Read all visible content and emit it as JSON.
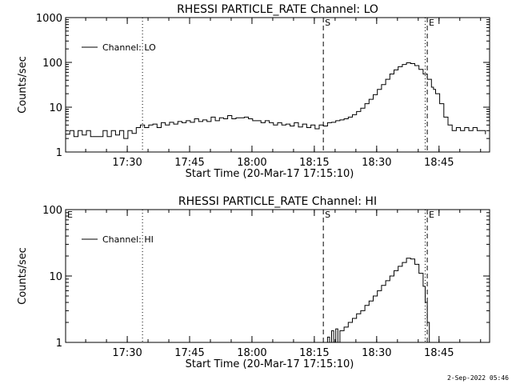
{
  "chart_data": [
    {
      "type": "line",
      "title": "RHESSI PARTICLE_RATE Channel: LO",
      "xlabel": "Start Time (20-Mar-17 17:15:10)",
      "ylabel": "Counts/sec",
      "y_scale": "log",
      "ylim": [
        1,
        1000
      ],
      "y_ticks": [
        "1",
        "10",
        "100",
        "1000"
      ],
      "xlim_minutes_after_17_15_10": [
        0,
        102
      ],
      "x_ticks": [
        "17:30",
        "17:45",
        "18:00",
        "18:15",
        "18:30",
        "18:45"
      ],
      "legend": "top-left",
      "series": [
        {
          "name": "Channel: LO",
          "points": [
            [
              0,
              2.5
            ],
            [
              1,
              3
            ],
            [
              2,
              2.2
            ],
            [
              3,
              3
            ],
            [
              4,
              2.4
            ],
            [
              5,
              3
            ],
            [
              6,
              2.2
            ],
            [
              7,
              2.2
            ],
            [
              8,
              2.2
            ],
            [
              9,
              3
            ],
            [
              10,
              2.2
            ],
            [
              11,
              3
            ],
            [
              12,
              2.4
            ],
            [
              13,
              3
            ],
            [
              14,
              2
            ],
            [
              15,
              3
            ],
            [
              16,
              2.6
            ],
            [
              17,
              3.5
            ],
            [
              18,
              4
            ],
            [
              19,
              3.5
            ],
            [
              20,
              4
            ],
            [
              21,
              4.2
            ],
            [
              22,
              3.5
            ],
            [
              23,
              4.5
            ],
            [
              24,
              4
            ],
            [
              25,
              4.6
            ],
            [
              26,
              4.2
            ],
            [
              27,
              4.8
            ],
            [
              28,
              4.5
            ],
            [
              29,
              5
            ],
            [
              30,
              4.6
            ],
            [
              31,
              5.5
            ],
            [
              32,
              4.8
            ],
            [
              33,
              5.2
            ],
            [
              34,
              4.8
            ],
            [
              35,
              6
            ],
            [
              36,
              5
            ],
            [
              37,
              5.8
            ],
            [
              38,
              5.5
            ],
            [
              39,
              6.5
            ],
            [
              40,
              5.5
            ],
            [
              41,
              5.8
            ],
            [
              42,
              5.8
            ],
            [
              43,
              6
            ],
            [
              44,
              5.5
            ],
            [
              45,
              5
            ],
            [
              46,
              5
            ],
            [
              47,
              4.5
            ],
            [
              48,
              5
            ],
            [
              49,
              4.5
            ],
            [
              50,
              4
            ],
            [
              51,
              4.5
            ],
            [
              52,
              4
            ],
            [
              53,
              4.2
            ],
            [
              54,
              3.8
            ],
            [
              55,
              4.5
            ],
            [
              56,
              3.6
            ],
            [
              57,
              4.2
            ],
            [
              58,
              3.5
            ],
            [
              59,
              4
            ],
            [
              60,
              3.3
            ],
            [
              61,
              4
            ],
            [
              62,
              3.8
            ],
            [
              63,
              4.5
            ],
            [
              64,
              4.6
            ],
            [
              65,
              5
            ],
            [
              66,
              5.2
            ],
            [
              67,
              5.5
            ],
            [
              68,
              6
            ],
            [
              69,
              6.8
            ],
            [
              70,
              8
            ],
            [
              71,
              9.5
            ],
            [
              72,
              12
            ],
            [
              73,
              15
            ],
            [
              74,
              19
            ],
            [
              75,
              25
            ],
            [
              76,
              32
            ],
            [
              77,
              42
            ],
            [
              78,
              55
            ],
            [
              79,
              68
            ],
            [
              80,
              80
            ],
            [
              81,
              90
            ],
            [
              82,
              98
            ],
            [
              83,
              94
            ],
            [
              84,
              85
            ],
            [
              85,
              70
            ],
            [
              86,
              55
            ],
            [
              87,
              42
            ],
            [
              88,
              28
            ],
            [
              88.5,
              25
            ],
            [
              89,
              20
            ],
            [
              90,
              12
            ],
            [
              91,
              6
            ],
            [
              92,
              4
            ],
            [
              93,
              3
            ],
            [
              94,
              3.5
            ],
            [
              95,
              3
            ],
            [
              96,
              3.5
            ],
            [
              97,
              3
            ],
            [
              98,
              3.5
            ],
            [
              99,
              3
            ],
            [
              100,
              3
            ],
            [
              101,
              2.5
            ]
          ]
        }
      ],
      "markers": [
        {
          "label": "S",
          "style": "dashed",
          "minute": 62
        },
        {
          "label": "E",
          "style": "dashed",
          "minute": 87
        }
      ],
      "dotted_lines_minutes": [
        18.5,
        86.5,
        102
      ]
    },
    {
      "type": "line",
      "title": "RHESSI PARTICLE_RATE Channel: HI",
      "xlabel": "Start Time (20-Mar-17 17:15:10)",
      "ylabel": "Counts/sec",
      "y_scale": "log",
      "ylim": [
        1,
        100
      ],
      "y_ticks": [
        "1",
        "10",
        "100"
      ],
      "xlim_minutes_after_17_15_10": [
        0,
        102
      ],
      "x_ticks": [
        "17:30",
        "17:45",
        "18:00",
        "18:15",
        "18:30",
        "18:45"
      ],
      "legend": "top-left",
      "series": [
        {
          "name": "Channel: HI",
          "points": [
            [
              62.5,
              1
            ],
            [
              63,
              1.2
            ],
            [
              63.5,
              1
            ],
            [
              64,
              1.5
            ],
            [
              64.5,
              1
            ],
            [
              65,
              1.6
            ],
            [
              65.5,
              1
            ],
            [
              66,
              1.5
            ],
            [
              67,
              1.7
            ],
            [
              68,
              2
            ],
            [
              69,
              2.3
            ],
            [
              70,
              2.7
            ],
            [
              71,
              3
            ],
            [
              72,
              3.6
            ],
            [
              73,
              4.2
            ],
            [
              74,
              5
            ],
            [
              75,
              6
            ],
            [
              76,
              7.2
            ],
            [
              77,
              8.5
            ],
            [
              78,
              10
            ],
            [
              79,
              12
            ],
            [
              80,
              14
            ],
            [
              81,
              16
            ],
            [
              82,
              18.5
            ],
            [
              83,
              18
            ],
            [
              84,
              15
            ],
            [
              85,
              11
            ],
            [
              86,
              7
            ],
            [
              86.5,
              4
            ],
            [
              87,
              2
            ],
            [
              87.5,
              1
            ]
          ]
        }
      ],
      "markers": [
        {
          "label": "S",
          "style": "dashed",
          "minute": 62
        },
        {
          "label": "E",
          "style": "dashed",
          "minute": 87
        }
      ],
      "corner_label": "E",
      "dotted_lines_minutes": [
        18.5,
        86.5,
        102
      ]
    }
  ],
  "timestamp": "2-Sep-2022 05:46"
}
